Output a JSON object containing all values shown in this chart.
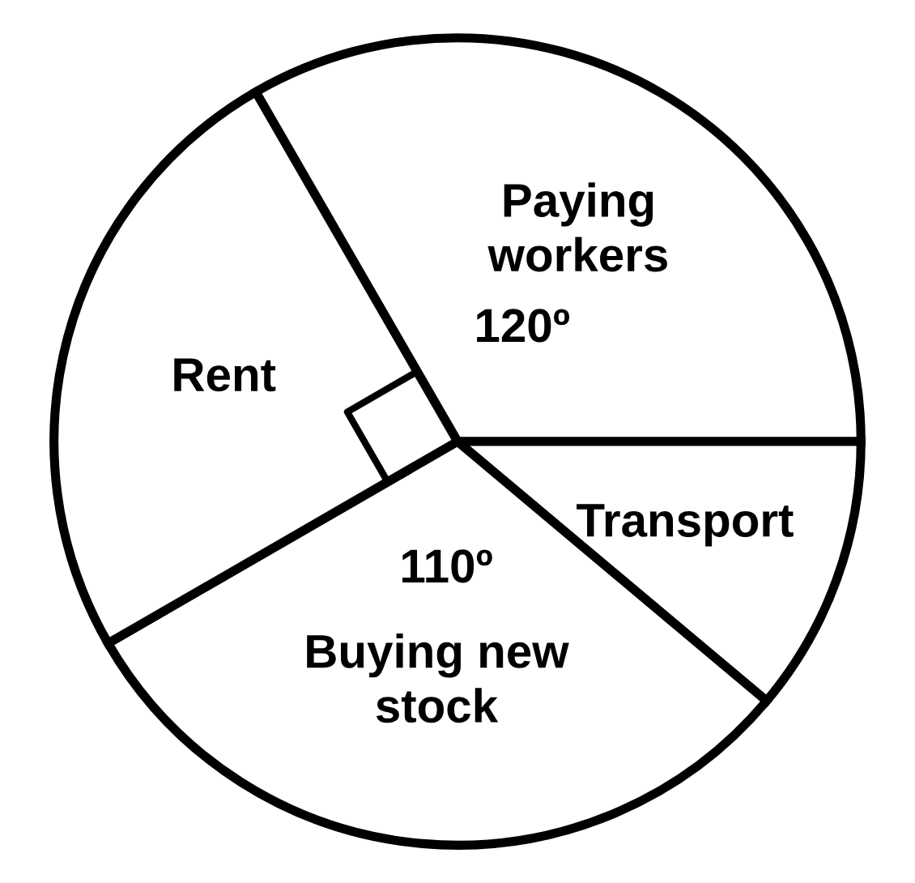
{
  "chart_data": {
    "type": "pie",
    "categories": [
      "Paying\nworkers",
      "Transport",
      "Buying new\nstock",
      "Rent"
    ],
    "values": [
      120,
      40,
      110,
      90
    ],
    "colors": [
      "#ffffff",
      "#ffffff",
      "#ffffff",
      "#ffffff"
    ],
    "value_labels": [
      "120º",
      null,
      "110º",
      null
    ],
    "legend": false
  }
}
